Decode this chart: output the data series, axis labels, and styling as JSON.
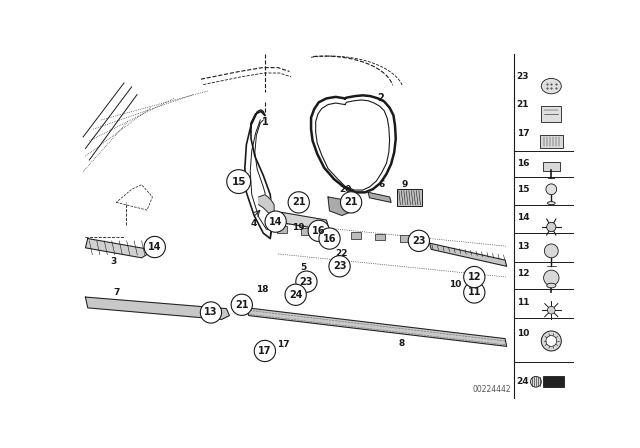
{
  "bg_color": "#ffffff",
  "dc": "#1a1a1a",
  "watermark": "00224442",
  "fig_w": 6.4,
  "fig_h": 4.48,
  "xlim": [
    0,
    6.4
  ],
  "ylim": [
    0,
    4.48
  ]
}
